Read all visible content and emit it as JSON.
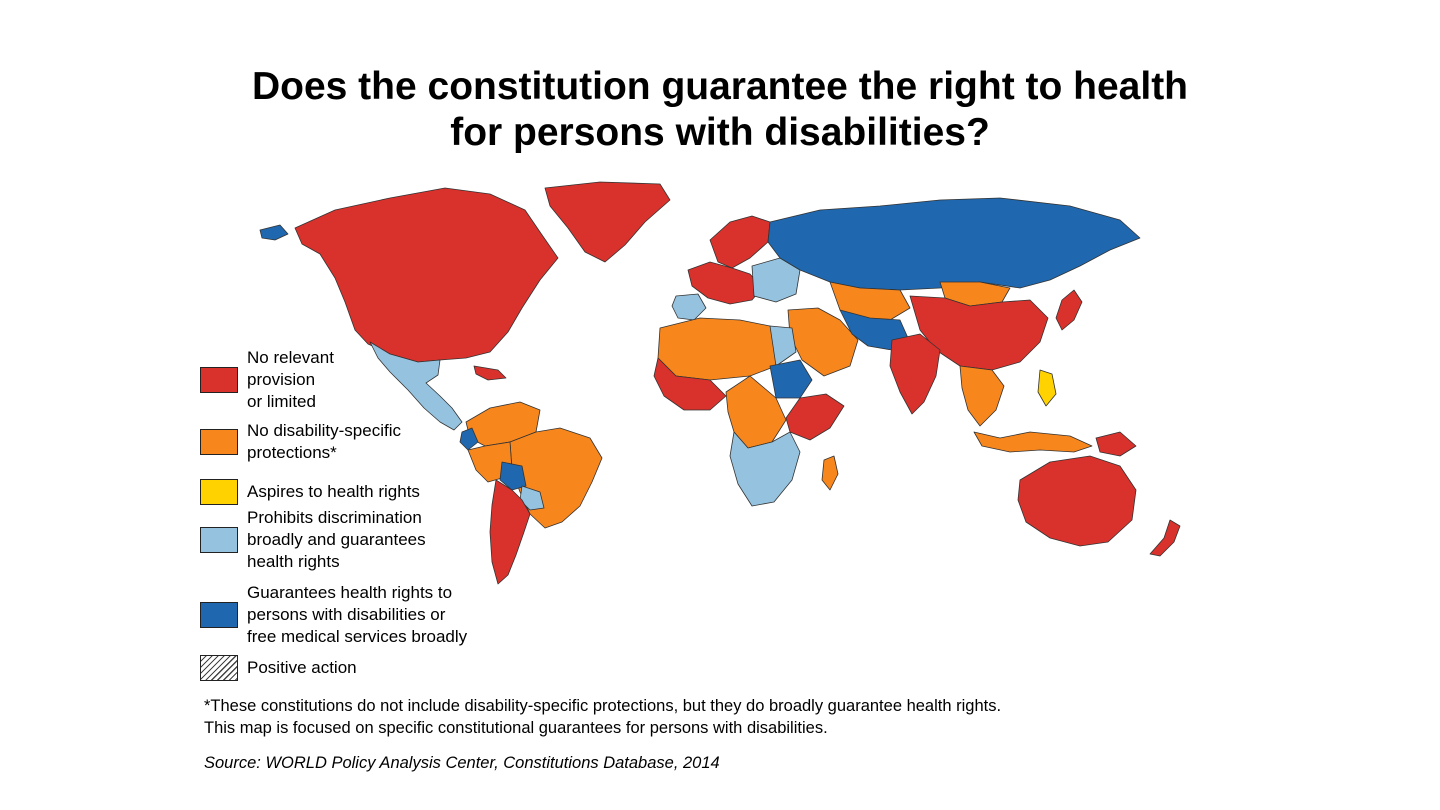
{
  "title": {
    "line1": "Does the constitution guarantee the right to health",
    "line2": "for persons with disabilities?"
  },
  "colors": {
    "no_relevant": "#d9312b",
    "no_disability_specific": "#f7861d",
    "aspires": "#ffd200",
    "prohibits_discrimination": "#95c3df",
    "guarantees": "#1f67ae",
    "positive_action": "#ffffff",
    "ocean": "#ffffff",
    "border": "#333333"
  },
  "legend": {
    "items": [
      {
        "key": "no_relevant",
        "lines": [
          "No relevant",
          "provision",
          "or limited"
        ]
      },
      {
        "key": "no_disability_specific",
        "lines": [
          "No disability-specific",
          "protections*"
        ]
      },
      {
        "key": "aspires",
        "lines": [
          "Aspires to health rights"
        ]
      },
      {
        "key": "prohibits_discrimination",
        "lines": [
          "Prohibits discrimination",
          "broadly and guarantees",
          "health rights"
        ]
      },
      {
        "key": "guarantees",
        "lines": [
          "Guarantees health rights to",
          "persons with disabilities or",
          "free medical services broadly"
        ]
      },
      {
        "key": "positive_action",
        "lines": [
          "Positive action"
        ]
      }
    ]
  },
  "footnote": {
    "line1": "*These constitutions do not include disability-specific protections, but they do broadly guarantee health rights.",
    "line2": "This map is focused on specific constitutional guarantees for persons with disabilities."
  },
  "source": "Source: WORLD Policy Analysis Center, Constitutions Database, 2014",
  "map_regions": [
    {
      "name": "north-america",
      "category": "no_relevant"
    },
    {
      "name": "greenland",
      "category": "no_relevant"
    },
    {
      "name": "alaska-islands",
      "category": "guarantees"
    },
    {
      "name": "mexico-central-america",
      "category": "prohibits_discrimination"
    },
    {
      "name": "caribbean",
      "category": "no_relevant"
    },
    {
      "name": "colombia-venezuela",
      "category": "no_disability_specific"
    },
    {
      "name": "brazil",
      "category": "no_disability_specific"
    },
    {
      "name": "peru",
      "category": "no_disability_specific"
    },
    {
      "name": "ecuador",
      "category": "guarantees"
    },
    {
      "name": "bolivia",
      "category": "guarantees"
    },
    {
      "name": "chile-argentina",
      "category": "no_relevant"
    },
    {
      "name": "uruguay-paraguay",
      "category": "prohibits_discrimination"
    },
    {
      "name": "russia",
      "category": "guarantees"
    },
    {
      "name": "scandinavia",
      "category": "no_relevant"
    },
    {
      "name": "western-europe",
      "category": "no_relevant"
    },
    {
      "name": "iberia",
      "category": "prohibits_discrimination"
    },
    {
      "name": "eastern-europe",
      "category": "prohibits_discrimination"
    },
    {
      "name": "north-africa",
      "category": "no_disability_specific"
    },
    {
      "name": "egypt",
      "category": "prohibits_discrimination"
    },
    {
      "name": "sudan",
      "category": "guarantees"
    },
    {
      "name": "west-africa",
      "category": "no_relevant"
    },
    {
      "name": "central-africa",
      "category": "no_disability_specific"
    },
    {
      "name": "east-africa",
      "category": "no_relevant"
    },
    {
      "name": "southern-africa",
      "category": "prohibits_discrimination"
    },
    {
      "name": "madagascar",
      "category": "no_disability_specific"
    },
    {
      "name": "middle-east",
      "category": "no_disability_specific"
    },
    {
      "name": "iran-pakistan",
      "category": "guarantees"
    },
    {
      "name": "central-asia",
      "category": "no_disability_specific"
    },
    {
      "name": "mongolia",
      "category": "no_disability_specific"
    },
    {
      "name": "china",
      "category": "no_relevant"
    },
    {
      "name": "india",
      "category": "no_relevant"
    },
    {
      "name": "southeast-asia",
      "category": "no_disability_specific"
    },
    {
      "name": "philippines",
      "category": "aspires"
    },
    {
      "name": "indonesia",
      "category": "no_disability_specific"
    },
    {
      "name": "japan",
      "category": "no_relevant"
    },
    {
      "name": "australia",
      "category": "no_relevant"
    },
    {
      "name": "new-zealand",
      "category": "no_relevant"
    },
    {
      "name": "papua-new-guinea",
      "category": "no_relevant"
    }
  ]
}
